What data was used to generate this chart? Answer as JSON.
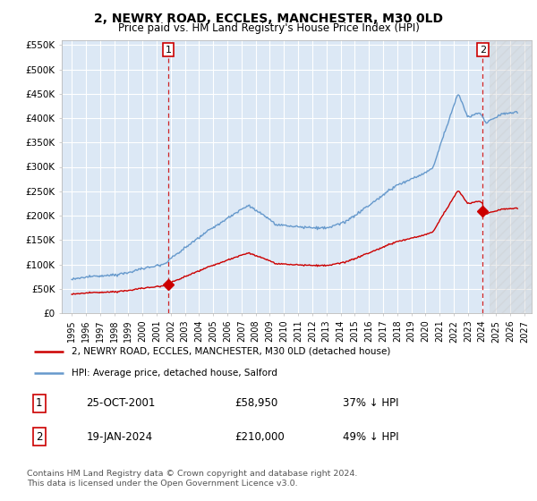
{
  "title": "2, NEWRY ROAD, ECCLES, MANCHESTER, M30 0LD",
  "subtitle": "Price paid vs. HM Land Registry's House Price Index (HPI)",
  "background_color": "#ffffff",
  "plot_bg_color": "#dce8f5",
  "grid_color": "#ffffff",
  "hpi_color": "#6699cc",
  "price_color": "#cc0000",
  "ylim": [
    0,
    560000
  ],
  "yticks": [
    0,
    50000,
    100000,
    150000,
    200000,
    250000,
    300000,
    350000,
    400000,
    450000,
    500000,
    550000
  ],
  "ytick_labels": [
    "£0",
    "£50K",
    "£100K",
    "£150K",
    "£200K",
    "£250K",
    "£300K",
    "£350K",
    "£400K",
    "£450K",
    "£500K",
    "£550K"
  ],
  "sale1_date_x": 2001.82,
  "sale1_price": 58950,
  "sale2_date_x": 2024.05,
  "sale2_price": 210000,
  "legend_line1": "2, NEWRY ROAD, ECCLES, MANCHESTER, M30 0LD (detached house)",
  "legend_line2": "HPI: Average price, detached house, Salford",
  "table_row1_num": "1",
  "table_row1_date": "25-OCT-2001",
  "table_row1_price": "£58,950",
  "table_row1_hpi": "37% ↓ HPI",
  "table_row2_num": "2",
  "table_row2_date": "19-JAN-2024",
  "table_row2_price": "£210,000",
  "table_row2_hpi": "49% ↓ HPI",
  "footnote1": "Contains HM Land Registry data © Crown copyright and database right 2024.",
  "footnote2": "This data is licensed under the Open Government Licence v3.0.",
  "xlim_start": 1994.3,
  "xlim_end": 2027.5,
  "hatch_start": 2024.5,
  "hatch_end": 2027.5
}
